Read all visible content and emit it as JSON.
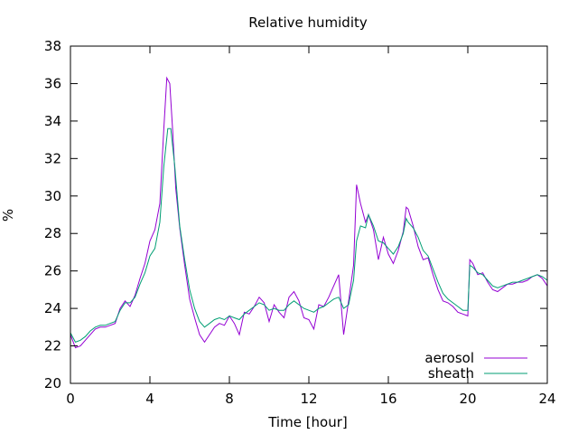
{
  "chart_data": {
    "type": "line",
    "title": "Relative humidity",
    "xlabel": "Time [hour]",
    "ylabel": "%",
    "xlim": [
      0,
      24
    ],
    "ylim": [
      20,
      38
    ],
    "xticks": [
      0,
      4,
      8,
      12,
      16,
      20,
      24
    ],
    "yticks": [
      20,
      22,
      24,
      26,
      28,
      30,
      32,
      34,
      36,
      38
    ],
    "grid": false,
    "legend": "bottom-right",
    "series": [
      {
        "name": "aerosol",
        "color": "#9400d3",
        "points": [
          [
            0.0,
            22.6
          ],
          [
            0.25,
            21.9
          ],
          [
            0.5,
            22.0
          ],
          [
            0.75,
            22.3
          ],
          [
            1.0,
            22.6
          ],
          [
            1.25,
            22.9
          ],
          [
            1.5,
            23.0
          ],
          [
            1.75,
            23.0
          ],
          [
            2.0,
            23.1
          ],
          [
            2.25,
            23.2
          ],
          [
            2.5,
            24.0
          ],
          [
            2.75,
            24.4
          ],
          [
            3.0,
            24.1
          ],
          [
            3.25,
            24.7
          ],
          [
            3.5,
            25.6
          ],
          [
            3.75,
            26.4
          ],
          [
            4.0,
            27.6
          ],
          [
            4.25,
            28.2
          ],
          [
            4.5,
            29.6
          ],
          [
            4.7,
            33.6
          ],
          [
            4.85,
            36.3
          ],
          [
            5.0,
            36.0
          ],
          [
            5.15,
            33.4
          ],
          [
            5.3,
            30.4
          ],
          [
            5.5,
            28.3
          ],
          [
            5.75,
            26.3
          ],
          [
            6.0,
            24.5
          ],
          [
            6.25,
            23.5
          ],
          [
            6.5,
            22.6
          ],
          [
            6.75,
            22.2
          ],
          [
            7.0,
            22.6
          ],
          [
            7.25,
            23.0
          ],
          [
            7.5,
            23.2
          ],
          [
            7.75,
            23.1
          ],
          [
            8.0,
            23.6
          ],
          [
            8.25,
            23.2
          ],
          [
            8.5,
            22.6
          ],
          [
            8.75,
            23.8
          ],
          [
            9.0,
            23.7
          ],
          [
            9.25,
            24.1
          ],
          [
            9.5,
            24.6
          ],
          [
            9.75,
            24.3
          ],
          [
            10.0,
            23.3
          ],
          [
            10.25,
            24.2
          ],
          [
            10.5,
            23.8
          ],
          [
            10.75,
            23.5
          ],
          [
            11.0,
            24.6
          ],
          [
            11.25,
            24.9
          ],
          [
            11.5,
            24.4
          ],
          [
            11.75,
            23.5
          ],
          [
            12.0,
            23.4
          ],
          [
            12.25,
            22.9
          ],
          [
            12.5,
            24.2
          ],
          [
            12.75,
            24.1
          ],
          [
            13.0,
            24.6
          ],
          [
            13.25,
            25.2
          ],
          [
            13.5,
            25.8
          ],
          [
            13.75,
            22.6
          ],
          [
            14.0,
            24.4
          ],
          [
            14.25,
            26.3
          ],
          [
            14.4,
            30.6
          ],
          [
            14.6,
            29.6
          ],
          [
            14.85,
            28.6
          ],
          [
            15.0,
            29.0
          ],
          [
            15.25,
            28.2
          ],
          [
            15.5,
            26.6
          ],
          [
            15.75,
            27.8
          ],
          [
            16.0,
            26.9
          ],
          [
            16.25,
            26.4
          ],
          [
            16.5,
            27.1
          ],
          [
            16.75,
            28.1
          ],
          [
            16.9,
            29.4
          ],
          [
            17.0,
            29.3
          ],
          [
            17.25,
            28.4
          ],
          [
            17.5,
            27.3
          ],
          [
            17.75,
            26.6
          ],
          [
            18.0,
            26.7
          ],
          [
            18.25,
            25.8
          ],
          [
            18.5,
            25.0
          ],
          [
            18.75,
            24.4
          ],
          [
            19.0,
            24.3
          ],
          [
            19.25,
            24.1
          ],
          [
            19.5,
            23.8
          ],
          [
            19.75,
            23.7
          ],
          [
            20.0,
            23.6
          ],
          [
            20.1,
            26.6
          ],
          [
            20.25,
            26.4
          ],
          [
            20.5,
            25.8
          ],
          [
            20.75,
            25.9
          ],
          [
            21.0,
            25.4
          ],
          [
            21.25,
            25.0
          ],
          [
            21.5,
            24.9
          ],
          [
            21.75,
            25.1
          ],
          [
            22.0,
            25.3
          ],
          [
            22.25,
            25.3
          ],
          [
            22.5,
            25.4
          ],
          [
            22.75,
            25.4
          ],
          [
            23.0,
            25.5
          ],
          [
            23.25,
            25.7
          ],
          [
            23.5,
            25.8
          ],
          [
            23.75,
            25.6
          ],
          [
            24.0,
            25.2
          ]
        ]
      },
      {
        "name": "sheath",
        "color": "#009e73",
        "points": [
          [
            0.0,
            22.7
          ],
          [
            0.25,
            22.2
          ],
          [
            0.5,
            22.3
          ],
          [
            0.75,
            22.5
          ],
          [
            1.0,
            22.8
          ],
          [
            1.25,
            23.0
          ],
          [
            1.5,
            23.1
          ],
          [
            1.75,
            23.1
          ],
          [
            2.0,
            23.2
          ],
          [
            2.25,
            23.3
          ],
          [
            2.5,
            23.9
          ],
          [
            2.75,
            24.3
          ],
          [
            3.0,
            24.3
          ],
          [
            3.25,
            24.6
          ],
          [
            3.5,
            25.3
          ],
          [
            3.75,
            25.9
          ],
          [
            4.0,
            26.8
          ],
          [
            4.25,
            27.2
          ],
          [
            4.5,
            28.6
          ],
          [
            4.7,
            31.6
          ],
          [
            4.9,
            33.6
          ],
          [
            5.05,
            33.6
          ],
          [
            5.25,
            31.6
          ],
          [
            5.5,
            28.4
          ],
          [
            5.75,
            26.6
          ],
          [
            6.0,
            25.0
          ],
          [
            6.25,
            24.0
          ],
          [
            6.5,
            23.3
          ],
          [
            6.75,
            23.0
          ],
          [
            7.0,
            23.2
          ],
          [
            7.25,
            23.4
          ],
          [
            7.5,
            23.5
          ],
          [
            7.75,
            23.4
          ],
          [
            8.0,
            23.6
          ],
          [
            8.25,
            23.5
          ],
          [
            8.5,
            23.4
          ],
          [
            8.75,
            23.7
          ],
          [
            9.0,
            23.9
          ],
          [
            9.25,
            24.1
          ],
          [
            9.5,
            24.3
          ],
          [
            9.75,
            24.2
          ],
          [
            10.0,
            23.9
          ],
          [
            10.25,
            24.0
          ],
          [
            10.5,
            23.9
          ],
          [
            10.75,
            23.9
          ],
          [
            11.0,
            24.2
          ],
          [
            11.25,
            24.4
          ],
          [
            11.5,
            24.2
          ],
          [
            11.75,
            24.0
          ],
          [
            12.0,
            23.9
          ],
          [
            12.25,
            23.8
          ],
          [
            12.5,
            24.0
          ],
          [
            12.75,
            24.1
          ],
          [
            13.0,
            24.3
          ],
          [
            13.25,
            24.5
          ],
          [
            13.5,
            24.6
          ],
          [
            13.75,
            24.0
          ],
          [
            14.0,
            24.2
          ],
          [
            14.25,
            25.5
          ],
          [
            14.4,
            27.6
          ],
          [
            14.6,
            28.4
          ],
          [
            14.85,
            28.3
          ],
          [
            15.0,
            29.0
          ],
          [
            15.25,
            28.4
          ],
          [
            15.5,
            27.6
          ],
          [
            15.75,
            27.5
          ],
          [
            16.0,
            27.2
          ],
          [
            16.25,
            26.9
          ],
          [
            16.5,
            27.3
          ],
          [
            16.75,
            28.0
          ],
          [
            16.9,
            28.8
          ],
          [
            17.0,
            28.6
          ],
          [
            17.25,
            28.3
          ],
          [
            17.5,
            27.8
          ],
          [
            17.75,
            27.1
          ],
          [
            18.0,
            26.8
          ],
          [
            18.25,
            26.1
          ],
          [
            18.5,
            25.4
          ],
          [
            18.75,
            24.8
          ],
          [
            19.0,
            24.5
          ],
          [
            19.25,
            24.3
          ],
          [
            19.5,
            24.1
          ],
          [
            19.75,
            23.9
          ],
          [
            20.0,
            23.9
          ],
          [
            20.1,
            26.3
          ],
          [
            20.25,
            26.2
          ],
          [
            20.5,
            25.9
          ],
          [
            20.75,
            25.8
          ],
          [
            21.0,
            25.5
          ],
          [
            21.25,
            25.2
          ],
          [
            21.5,
            25.1
          ],
          [
            21.75,
            25.2
          ],
          [
            22.0,
            25.3
          ],
          [
            22.25,
            25.4
          ],
          [
            22.5,
            25.4
          ],
          [
            22.75,
            25.5
          ],
          [
            23.0,
            25.6
          ],
          [
            23.25,
            25.7
          ],
          [
            23.5,
            25.8
          ],
          [
            23.75,
            25.7
          ],
          [
            24.0,
            25.5
          ]
        ]
      }
    ]
  }
}
